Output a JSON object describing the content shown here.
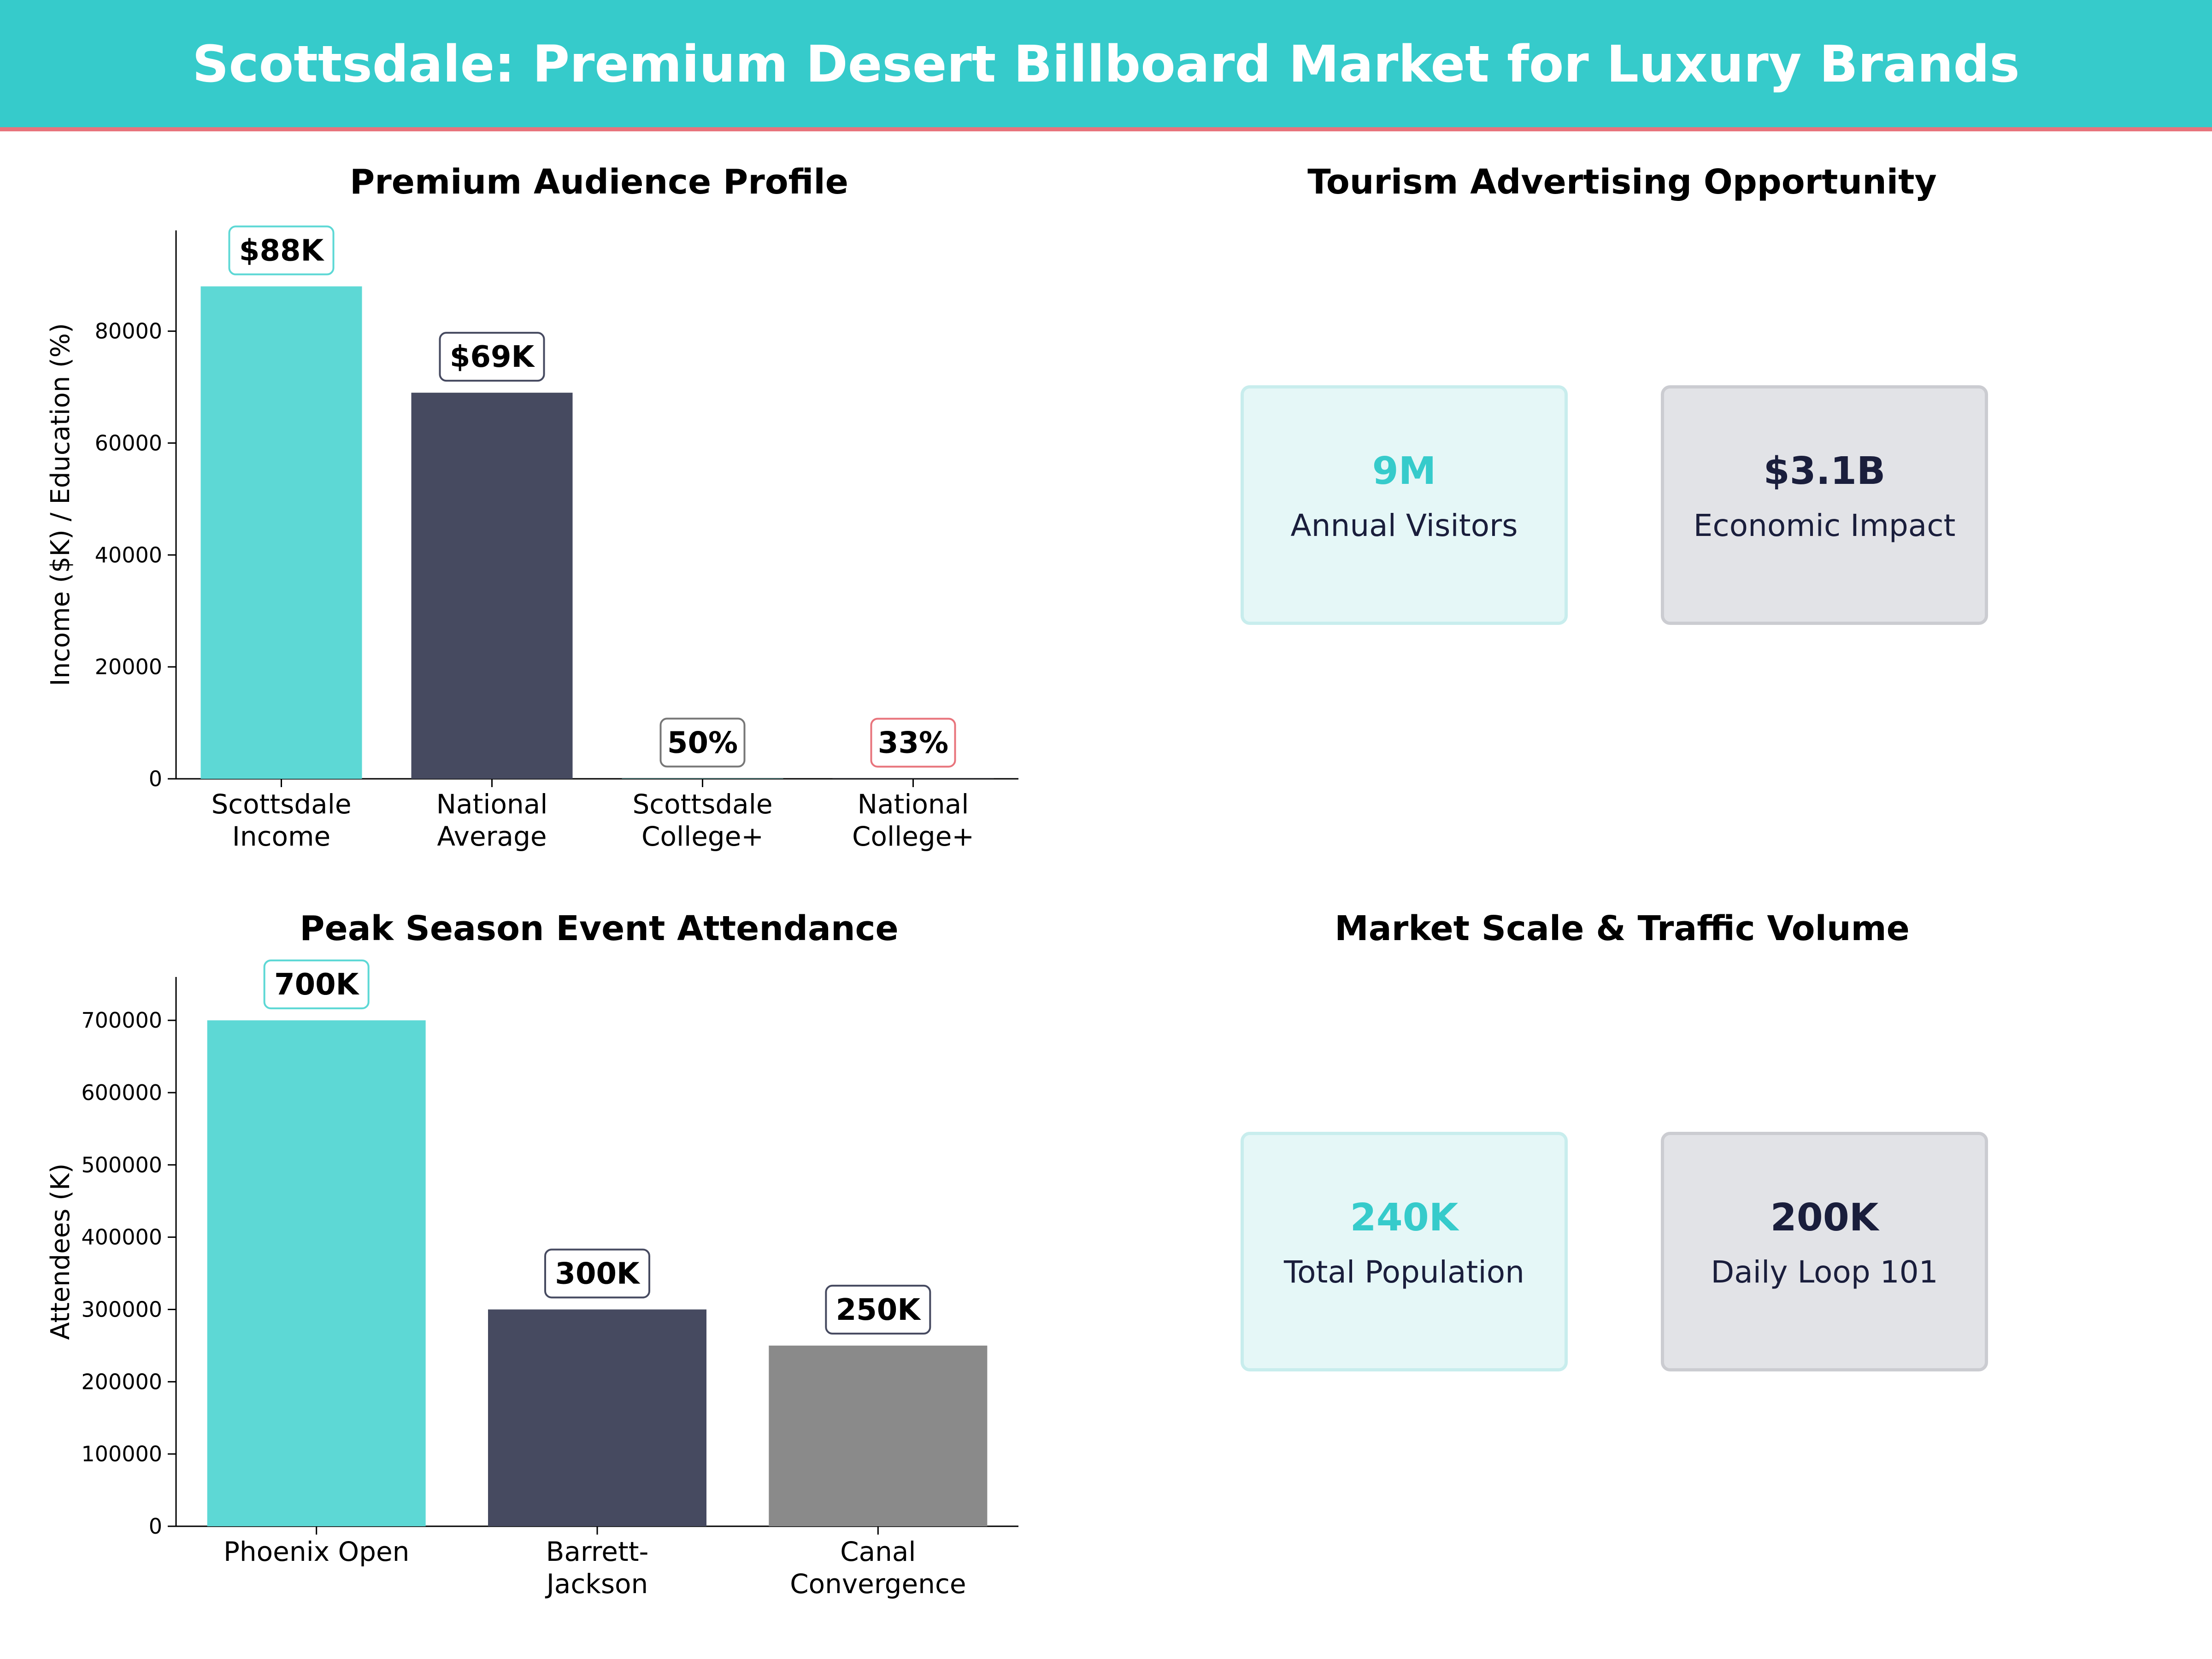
{
  "header": {
    "title": "Scottsdale: Premium Desert Billboard Market for Luxury Brands"
  },
  "colors": {
    "header_bg": "#36cbcb",
    "header_accent": "#e8747c",
    "teal": "#5dd8d5",
    "navy": "#464a60",
    "gray": "#8a8a8a",
    "card_teal_bg": "#e5f7f7",
    "card_teal_border": "#c8eded",
    "card_gray_bg": "#e2e3e7",
    "card_gray_border": "#cbccd1",
    "teal_text": "#36cbcb",
    "navy_text": "#1a1e3c"
  },
  "panels": {
    "audience": {
      "title": "Premium Audience Profile"
    },
    "tourism": {
      "title": "Tourism Advertising Opportunity"
    },
    "events": {
      "title": "Peak Season Event Attendance"
    },
    "scale": {
      "title": "Market Scale & Traffic Volume"
    }
  },
  "chart_data": [
    {
      "id": "audience",
      "type": "bar",
      "title": "Premium Audience Profile",
      "ylabel": "Income ($K) / Education (%)",
      "ylim": [
        0,
        98000
      ],
      "yticks": [
        0,
        20000,
        40000,
        60000,
        80000
      ],
      "categories": [
        [
          "Scottsdale",
          "Income"
        ],
        [
          "National",
          "Average"
        ],
        [
          "Scottsdale",
          "College+"
        ],
        [
          "National",
          "College+"
        ]
      ],
      "values": [
        88000,
        69000,
        50,
        33
      ],
      "bar_colors": [
        "#5dd8d5",
        "#464a60",
        "#5dd8d5",
        "#464a60"
      ],
      "labels": [
        "$88K",
        "$69K",
        "50%",
        "33%"
      ],
      "label_borders": [
        "#5dd8d5",
        "#464a60",
        "#777777",
        "#e8747c"
      ]
    },
    {
      "id": "events",
      "type": "bar",
      "title": "Peak Season Event Attendance",
      "ylabel": "Attendees (K)",
      "ylim": [
        0,
        760000
      ],
      "yticks": [
        0,
        100000,
        200000,
        300000,
        400000,
        500000,
        600000,
        700000
      ],
      "categories": [
        [
          "Phoenix Open"
        ],
        [
          "Barrett-",
          "Jackson"
        ],
        [
          "Canal",
          "Convergence"
        ]
      ],
      "values": [
        700000,
        300000,
        250000
      ],
      "bar_colors": [
        "#5dd8d5",
        "#464a60",
        "#8a8a8a"
      ],
      "labels": [
        "700K",
        "300K",
        "250K"
      ],
      "label_borders": [
        "#5dd8d5",
        "#464a60",
        "#464a60"
      ]
    }
  ],
  "cards": {
    "tourism": [
      {
        "value": "9M",
        "label": "Annual Visitors",
        "style": "teal"
      },
      {
        "value": "$3.1B",
        "label": "Economic Impact",
        "style": "gray"
      }
    ],
    "scale": [
      {
        "value": "240K",
        "label": "Total Population",
        "style": "teal"
      },
      {
        "value": "200K",
        "label": "Daily Loop 101",
        "style": "gray"
      }
    ]
  }
}
